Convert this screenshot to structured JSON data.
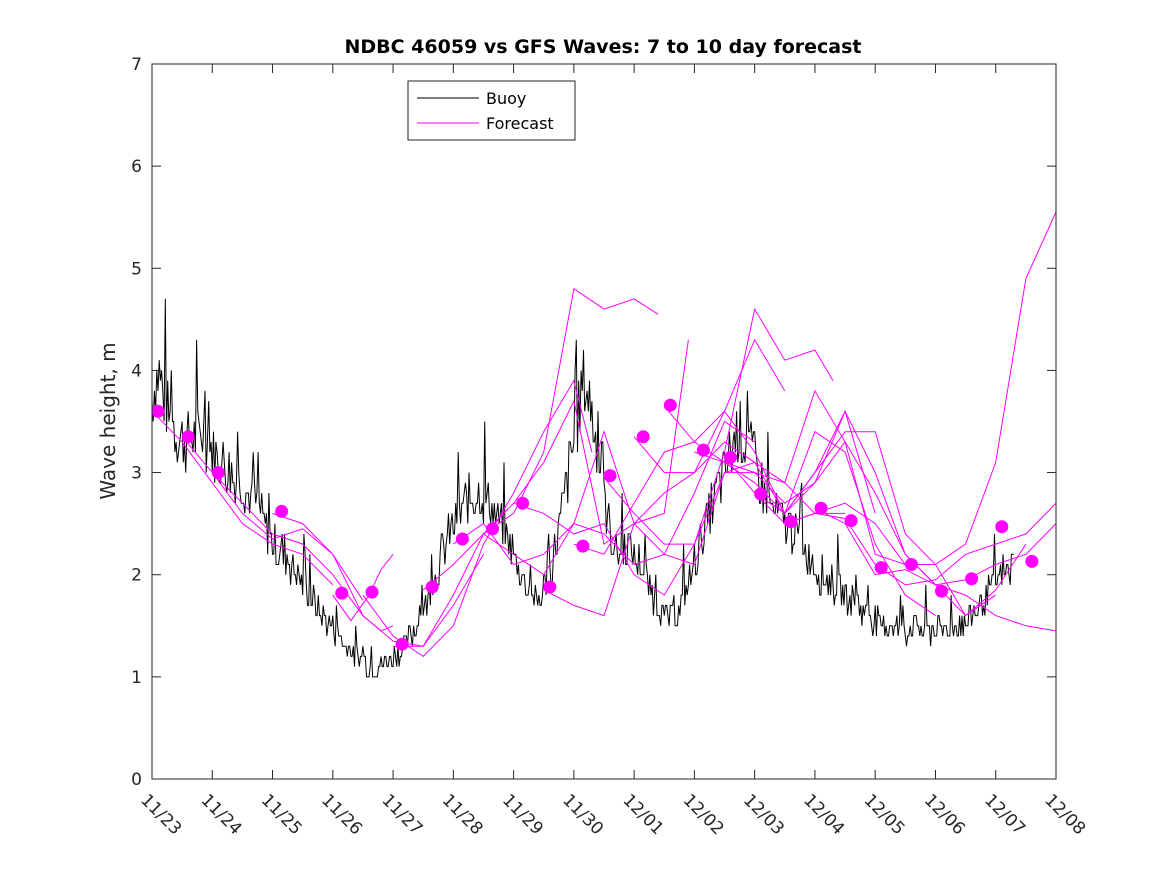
{
  "chart_data": {
    "type": "line",
    "title": "NDBC 46059 vs GFS Waves: 7 to 10 day forecast",
    "xlabel": "",
    "ylabel": "Wave height, m",
    "xlim": [
      0,
      15
    ],
    "ylim": [
      0,
      7
    ],
    "x_tick_labels": [
      "11/23",
      "11/24",
      "11/25",
      "11/26",
      "11/27",
      "11/28",
      "11/29",
      "11/30",
      "12/01",
      "12/02",
      "12/03",
      "12/04",
      "12/05",
      "12/06",
      "12/07",
      "12/08"
    ],
    "y_ticks": [
      0,
      1,
      2,
      3,
      4,
      5,
      6,
      7
    ],
    "legend": {
      "position": "top-left",
      "entries": [
        {
          "label": "Buoy",
          "color": "#000000"
        },
        {
          "label": "Forecast",
          "color": "#ff00ff"
        }
      ]
    },
    "colors": {
      "buoy": "#000000",
      "forecast": "#ff00ff",
      "axes": "#262626"
    },
    "buoy_keypoints": [
      [
        0.0,
        3.7
      ],
      [
        0.1,
        4.0
      ],
      [
        0.25,
        3.6
      ],
      [
        0.5,
        3.3
      ],
      [
        0.8,
        3.4
      ],
      [
        1.0,
        3.2
      ],
      [
        1.3,
        3.0
      ],
      [
        1.6,
        2.8
      ],
      [
        1.8,
        2.6
      ],
      [
        2.0,
        2.3
      ],
      [
        2.2,
        2.2
      ],
      [
        2.4,
        2.0
      ],
      [
        2.6,
        1.8
      ],
      [
        2.8,
        1.6
      ],
      [
        3.0,
        1.5
      ],
      [
        3.2,
        1.3
      ],
      [
        3.4,
        1.2
      ],
      [
        3.6,
        1.1
      ],
      [
        3.8,
        1.1
      ],
      [
        4.0,
        1.2
      ],
      [
        4.2,
        1.3
      ],
      [
        4.4,
        1.5
      ],
      [
        4.6,
        1.8
      ],
      [
        4.8,
        2.2
      ],
      [
        5.0,
        2.5
      ],
      [
        5.2,
        2.7
      ],
      [
        5.4,
        2.8
      ],
      [
        5.6,
        2.7
      ],
      [
        5.8,
        2.5
      ],
      [
        6.0,
        2.2
      ],
      [
        6.2,
        1.9
      ],
      [
        6.4,
        1.7
      ],
      [
        6.6,
        2.0
      ],
      [
        6.8,
        2.6
      ],
      [
        7.0,
        3.3
      ],
      [
        7.15,
        3.9
      ],
      [
        7.3,
        3.6
      ],
      [
        7.5,
        2.7
      ],
      [
        7.7,
        2.2
      ],
      [
        7.9,
        2.3
      ],
      [
        8.1,
        2.1
      ],
      [
        8.3,
        1.8
      ],
      [
        8.5,
        1.6
      ],
      [
        8.7,
        1.6
      ],
      [
        8.9,
        1.9
      ],
      [
        9.1,
        2.3
      ],
      [
        9.3,
        2.7
      ],
      [
        9.5,
        3.0
      ],
      [
        9.7,
        3.4
      ],
      [
        9.9,
        3.3
      ],
      [
        10.1,
        2.9
      ],
      [
        10.3,
        2.6
      ],
      [
        10.5,
        2.5
      ],
      [
        10.7,
        2.4
      ],
      [
        10.9,
        2.2
      ],
      [
        11.1,
        2.0
      ],
      [
        11.3,
        1.9
      ],
      [
        11.5,
        1.8
      ],
      [
        11.7,
        1.7
      ],
      [
        11.9,
        1.6
      ],
      [
        12.1,
        1.5
      ],
      [
        12.3,
        1.5
      ],
      [
        12.5,
        1.45
      ],
      [
        12.7,
        1.5
      ],
      [
        12.9,
        1.45
      ],
      [
        13.1,
        1.45
      ],
      [
        13.3,
        1.5
      ],
      [
        13.5,
        1.55
      ],
      [
        13.7,
        1.65
      ],
      [
        13.9,
        1.85
      ],
      [
        14.1,
        2.0
      ],
      [
        14.3,
        2.1
      ]
    ],
    "forecast_series": [
      {
        "name": "Forecast",
        "x": [
          0.0,
          0.5,
          1.0,
          1.5,
          2.0,
          2.5,
          3.0
        ],
        "y": [
          3.6,
          3.3,
          2.9,
          2.5,
          2.3,
          2.2,
          1.9
        ]
      },
      {
        "name": "Forecast",
        "x": [
          0.5,
          1.0,
          1.5,
          2.0,
          2.5,
          3.0,
          3.5
        ],
        "y": [
          3.35,
          3.0,
          2.6,
          2.35,
          2.45,
          2.2,
          1.75
        ]
      },
      {
        "name": "Forecast",
        "x": [
          1.0,
          1.5,
          2.0,
          2.5,
          3.0,
          3.5,
          3.8,
          4.0
        ],
        "y": [
          3.0,
          2.7,
          2.4,
          2.3,
          2.0,
          1.6,
          1.45,
          1.5
        ]
      },
      {
        "name": "Forecast",
        "x": [
          2.0,
          2.5,
          3.0,
          3.5,
          4.0,
          4.5,
          5.0,
          5.5
        ],
        "y": [
          2.6,
          2.5,
          2.2,
          1.6,
          1.35,
          1.3,
          1.7,
          2.2
        ]
      },
      {
        "name": "Forecast",
        "x": [
          3.0,
          3.3,
          3.6,
          3.8,
          4.0
        ],
        "y": [
          1.8,
          1.55,
          1.8,
          2.05,
          2.2
        ]
      },
      {
        "name": "Forecast",
        "x": [
          3.5,
          4.0,
          4.5,
          5.0,
          5.5,
          6.0,
          6.5,
          7.0,
          7.3
        ],
        "y": [
          1.8,
          1.4,
          1.2,
          1.5,
          2.3,
          2.8,
          3.4,
          3.9,
          3.2
        ]
      },
      {
        "name": "Forecast",
        "x": [
          4.0,
          4.5,
          5.0,
          5.5,
          6.0,
          6.5,
          7.0,
          7.5,
          8.0,
          8.4
        ],
        "y": [
          1.3,
          1.3,
          1.8,
          2.4,
          2.6,
          3.2,
          4.8,
          4.6,
          4.7,
          4.55
        ]
      },
      {
        "name": "Forecast",
        "x": [
          4.5,
          5.0,
          5.5,
          6.0,
          6.5,
          7.0,
          7.5,
          8.0,
          8.5,
          8.9
        ],
        "y": [
          1.85,
          2.1,
          2.4,
          2.2,
          2.0,
          2.5,
          3.4,
          2.5,
          2.6,
          4.3
        ]
      },
      {
        "name": "Forecast",
        "x": [
          5.0,
          5.5,
          6.0,
          6.5,
          7.0,
          7.5,
          8.0,
          8.5,
          9.0,
          9.5,
          10.0
        ],
        "y": [
          2.3,
          2.5,
          2.1,
          2.2,
          2.5,
          2.4,
          2.1,
          2.2,
          2.8,
          3.5,
          3.3
        ]
      },
      {
        "name": "Forecast",
        "x": [
          5.5,
          6.0,
          6.5,
          7.0,
          7.5,
          8.0,
          8.5,
          9.0,
          9.5,
          10.0,
          10.5
        ],
        "y": [
          2.4,
          2.7,
          3.1,
          3.7,
          2.3,
          2.5,
          2.8,
          3.0,
          3.6,
          4.3,
          3.8
        ]
      },
      {
        "name": "Forecast",
        "x": [
          6.0,
          6.5,
          7.0,
          7.5,
          8.0,
          8.5,
          9.0,
          9.5,
          10.0,
          10.5,
          11.0,
          11.3
        ],
        "y": [
          2.7,
          2.6,
          2.4,
          2.5,
          2.0,
          1.8,
          2.3,
          3.2,
          4.6,
          4.1,
          4.2,
          3.9
        ]
      },
      {
        "name": "Forecast",
        "x": [
          6.5,
          7.0,
          7.5,
          8.0,
          8.5,
          9.0,
          9.5,
          10.0,
          10.5,
          11.0,
          11.5
        ],
        "y": [
          1.85,
          1.7,
          1.6,
          2.5,
          2.2,
          2.1,
          3.0,
          3.0,
          2.9,
          2.6,
          2.6
        ]
      },
      {
        "name": "Forecast",
        "x": [
          7.0,
          7.5,
          8.0,
          8.5,
          9.0,
          9.5,
          10.0,
          10.5,
          11.0,
          11.5,
          12.0
        ],
        "y": [
          2.3,
          2.2,
          2.7,
          3.2,
          3.3,
          3.6,
          3.2,
          2.6,
          3.0,
          3.6,
          2.6
        ]
      },
      {
        "name": "Forecast",
        "x": [
          7.5,
          8.0,
          8.5,
          9.0,
          9.5,
          10.0,
          10.5,
          11.0,
          11.5,
          12.0,
          12.5
        ],
        "y": [
          2.95,
          2.6,
          2.3,
          2.3,
          3.0,
          3.1,
          2.9,
          3.8,
          3.3,
          2.2,
          2.1
        ]
      },
      {
        "name": "Forecast",
        "x": [
          8.0,
          8.5,
          9.0,
          9.5,
          10.0,
          10.5,
          11.0,
          11.5,
          12.0,
          12.5,
          13.0
        ],
        "y": [
          3.35,
          3.0,
          3.0,
          3.3,
          3.1,
          2.6,
          3.4,
          3.2,
          2.3,
          1.8,
          1.6
        ]
      },
      {
        "name": "Forecast",
        "x": [
          8.5,
          9.0,
          9.5,
          10.0,
          10.5,
          11.0,
          11.5,
          12.0,
          12.5,
          13.0,
          13.5,
          14.0
        ],
        "y": [
          3.65,
          3.3,
          3.1,
          3.0,
          2.7,
          2.9,
          3.6,
          3.0,
          2.2,
          1.9,
          1.6,
          1.8
        ]
      },
      {
        "name": "Forecast",
        "x": [
          9.0,
          9.5,
          10.0,
          10.5,
          11.0,
          11.5,
          12.0,
          12.5,
          13.0,
          13.5,
          14.0,
          14.5
        ],
        "y": [
          3.2,
          3.1,
          2.9,
          2.6,
          3.0,
          3.4,
          3.4,
          2.4,
          2.1,
          1.6,
          1.85,
          2.3
        ]
      },
      {
        "name": "Forecast",
        "x": [
          9.5,
          10.0,
          10.5,
          11.0,
          11.5,
          12.0,
          12.5,
          13.0,
          13.5,
          14.0,
          14.5,
          15.0
        ],
        "y": [
          3.15,
          2.8,
          2.6,
          2.9,
          3.3,
          2.8,
          2.2,
          1.9,
          1.8,
          1.6,
          1.5,
          1.45
        ]
      },
      {
        "name": "Forecast",
        "x": [
          10.0,
          10.5,
          11.0,
          11.5,
          12.0,
          12.5,
          13.0,
          13.5,
          14.0,
          14.5,
          15.0
        ],
        "y": [
          2.8,
          2.5,
          2.6,
          2.7,
          2.5,
          2.1,
          2.1,
          2.3,
          3.1,
          4.9,
          5.55
        ]
      },
      {
        "name": "Forecast",
        "x": [
          10.5,
          11.0,
          11.5,
          12.0,
          12.5,
          13.0,
          13.5,
          14.0,
          14.5,
          15.0
        ],
        "y": [
          2.5,
          2.6,
          2.55,
          2.1,
          1.9,
          1.95,
          2.2,
          2.3,
          2.4,
          2.7
        ]
      },
      {
        "name": "Forecast",
        "x": [
          11.0,
          11.5,
          12.0,
          12.5,
          13.0,
          13.5,
          14.0,
          14.5,
          15.0
        ],
        "y": [
          2.65,
          2.5,
          2.0,
          2.05,
          1.9,
          1.95,
          2.1,
          2.2,
          2.5
        ]
      }
    ],
    "init_markers": {
      "x": [
        0.1,
        0.6,
        1.1,
        2.15,
        3.15,
        3.65,
        4.15,
        4.65,
        5.15,
        5.65,
        6.15,
        6.6,
        7.15,
        7.6,
        8.15,
        8.6,
        9.15,
        9.6,
        10.1,
        10.6,
        11.1,
        11.6,
        12.1,
        12.6,
        13.1,
        13.6,
        14.1,
        14.6
      ],
      "y": [
        3.6,
        3.35,
        3.0,
        2.62,
        1.82,
        1.83,
        1.32,
        1.88,
        2.35,
        2.45,
        2.7,
        1.88,
        2.28,
        2.97,
        3.35,
        3.66,
        3.22,
        3.15,
        2.79,
        2.52,
        2.65,
        2.53,
        2.07,
        2.1,
        1.84,
        1.96,
        2.47,
        2.13
      ]
    }
  }
}
